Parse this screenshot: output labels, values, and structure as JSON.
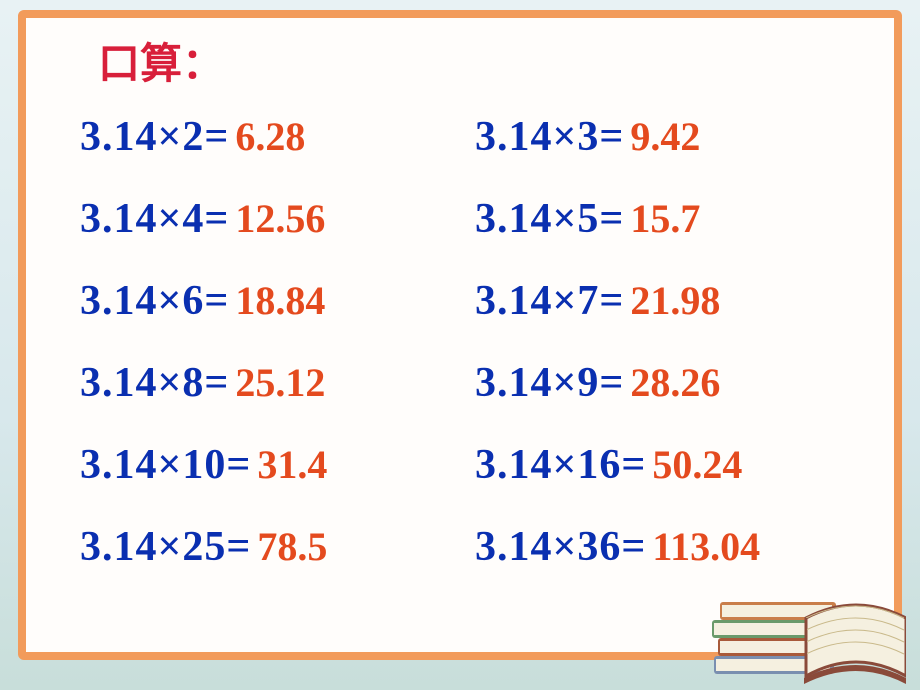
{
  "title": "口算：",
  "colors": {
    "frame_border": "#f29b5b",
    "title_color": "#d81f3a",
    "problem_color": "#0a2fb0",
    "answer_color": "#e44a1e",
    "card_bg": "#fffdfb"
  },
  "font": {
    "title_size": 42,
    "problem_size": 42,
    "answer_size": 40,
    "weight": "bold"
  },
  "rows": [
    {
      "left": {
        "p": "3.14×2=",
        "a": "6.28"
      },
      "right": {
        "p": "3.14×3=",
        "a": "9.42"
      }
    },
    {
      "left": {
        "p": "3.14×4=",
        "a": "12.56"
      },
      "right": {
        "p": "3.14×5=",
        "a": "15.7"
      }
    },
    {
      "left": {
        "p": "3.14×6=",
        "a": "18.84"
      },
      "right": {
        "p": "3.14×7=",
        "a": "21.98"
      }
    },
    {
      "left": {
        "p": "3.14×8=",
        "a": "25.12"
      },
      "right": {
        "p": "3.14×9=",
        "a": "28.26"
      }
    },
    {
      "left": {
        "p": "3.14×10=",
        "a": "31.4"
      },
      "right": {
        "p": "3.14×16=",
        "a": "50.24"
      }
    },
    {
      "left": {
        "p": "3.14×25=",
        "a": "78.5"
      },
      "right": {
        "p": "3.14×36=",
        "a": "113.04"
      }
    }
  ],
  "decoration": {
    "books": {
      "book_colors": [
        "#7a8fb0",
        "#a85a3a",
        "#6a9a6a",
        "#c97e4a"
      ],
      "page_color": "#f5f0e0",
      "cover_color": "#8a4a3a"
    }
  }
}
